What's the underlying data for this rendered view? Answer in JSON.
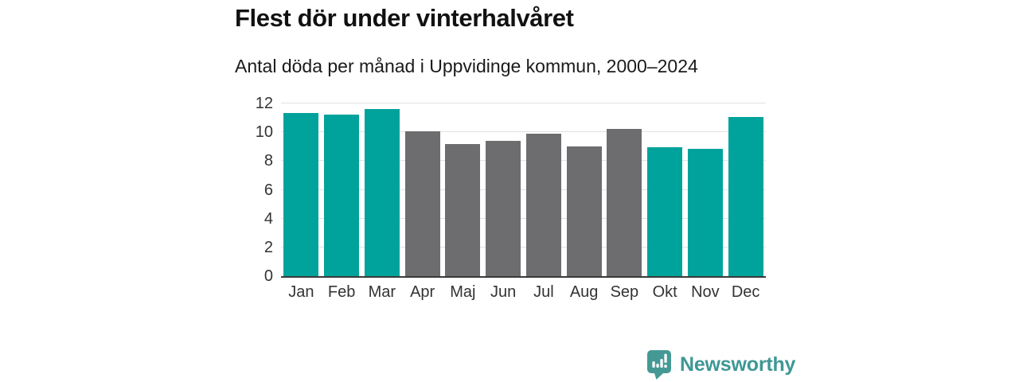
{
  "chart_data": {
    "type": "bar",
    "title": "Flest dör under vinterhalvåret",
    "subtitle": "Antal döda per månad i Uppvidinge kommun, 2000–2024",
    "categories": [
      "Jan",
      "Feb",
      "Mar",
      "Apr",
      "Maj",
      "Jun",
      "Jul",
      "Aug",
      "Sep",
      "Okt",
      "Nov",
      "Dec"
    ],
    "values": [
      11.32,
      11.2,
      11.64,
      10.04,
      9.2,
      9.4,
      9.88,
      9.0,
      10.24,
      8.96,
      8.84,
      11.08
    ],
    "bar_colors": [
      "#00a39b",
      "#00a39b",
      "#00a39b",
      "#6d6d70",
      "#6d6d70",
      "#6d6d70",
      "#6d6d70",
      "#6d6d70",
      "#6d6d70",
      "#00a39b",
      "#00a39b",
      "#00a39b"
    ],
    "winter_color": "#00a39b",
    "summer_color": "#6d6d70",
    "ylim": [
      0,
      12
    ],
    "yticks": [
      0,
      2,
      4,
      6,
      8,
      10,
      12
    ],
    "grid": true,
    "legend": "none",
    "xlabel": "",
    "ylabel": ""
  },
  "footer": {
    "brand_name": "Newsworthy",
    "brand_color": "#3e9795",
    "icon": "newsworthy-speech-bubble-chart-icon",
    "icon_color": "#459995"
  }
}
